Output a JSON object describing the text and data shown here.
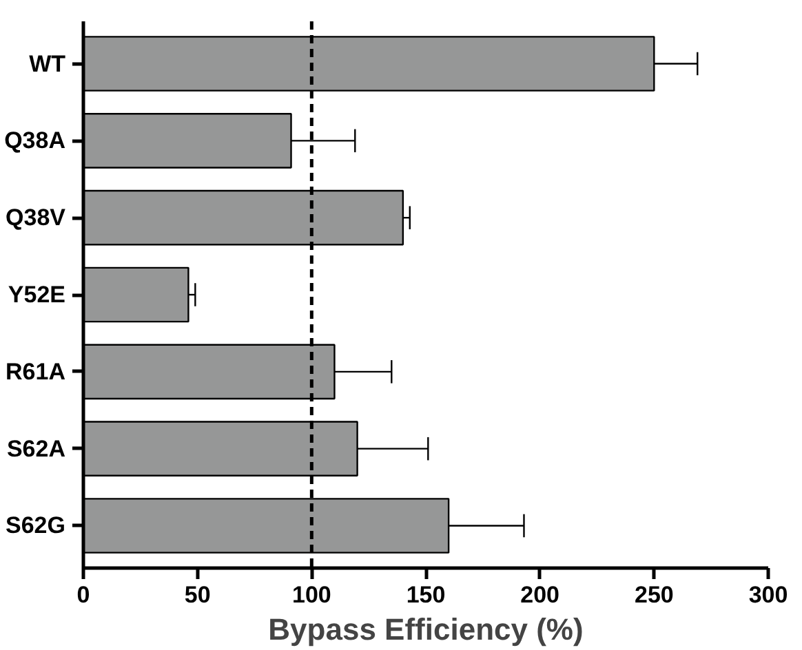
{
  "chart_data": {
    "type": "bar",
    "orientation": "horizontal",
    "xlabel": "Bypass Efficiency (%)",
    "categories": [
      "WT",
      "Q38A",
      "Q38V",
      "Y52E",
      "R61A",
      "S62A",
      "S62G"
    ],
    "values": [
      250,
      91,
      140,
      46,
      110,
      120,
      160
    ],
    "errors": [
      [
        250,
        269
      ],
      [
        91,
        119
      ],
      [
        140,
        143
      ],
      [
        46,
        49
      ],
      [
        110,
        135
      ],
      [
        120,
        151
      ],
      [
        160,
        193
      ]
    ],
    "color": "#969797",
    "xlim": [
      0,
      300
    ],
    "xticks": [
      0,
      50,
      100,
      150,
      200,
      250,
      300
    ],
    "ref_lines": [
      {
        "axis": "x",
        "value": 100,
        "color": "#000000",
        "line_style": "dashed"
      }
    ],
    "grid": false
  }
}
